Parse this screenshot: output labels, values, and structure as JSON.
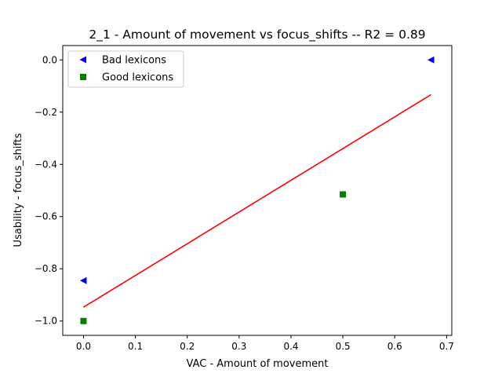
{
  "chart_data": {
    "type": "scatter",
    "title": "2_1 - Amount of movement  vs  focus_shifts -- R2 = 0.89",
    "xlabel": "VAC - Amount of movement",
    "ylabel": "Usability - focus_shifts",
    "xlim": [
      -0.04,
      0.71
    ],
    "ylim": [
      -1.055,
      0.055
    ],
    "x_ticks": [
      0.0,
      0.1,
      0.2,
      0.3,
      0.4,
      0.5,
      0.6,
      0.7
    ],
    "x_tick_labels": [
      "0.0",
      "0.1",
      "0.2",
      "0.3",
      "0.4",
      "0.5",
      "0.6",
      "0.7"
    ],
    "y_ticks": [
      0.0,
      -0.2,
      -0.4,
      -0.6,
      -0.8,
      -1.0
    ],
    "y_tick_labels": [
      "0.0",
      "−0.2",
      "−0.4",
      "−0.6",
      "−0.8",
      "−1.0"
    ],
    "grid": false,
    "legend_position": "top-left",
    "series": [
      {
        "name": "Bad lexicons",
        "marker": "triangle-left",
        "color": "#0000ff",
        "x": [
          0.0,
          0.67
        ],
        "y": [
          -0.845,
          0.0
        ]
      },
      {
        "name": "Good lexicons",
        "marker": "square",
        "color": "#008000",
        "x": [
          0.0,
          0.5
        ],
        "y": [
          -1.0,
          -0.515
        ]
      }
    ],
    "fit_line": {
      "color": "#ff0000",
      "x": [
        0.0,
        0.67
      ],
      "y": [
        -0.947,
        -0.133
      ]
    }
  }
}
